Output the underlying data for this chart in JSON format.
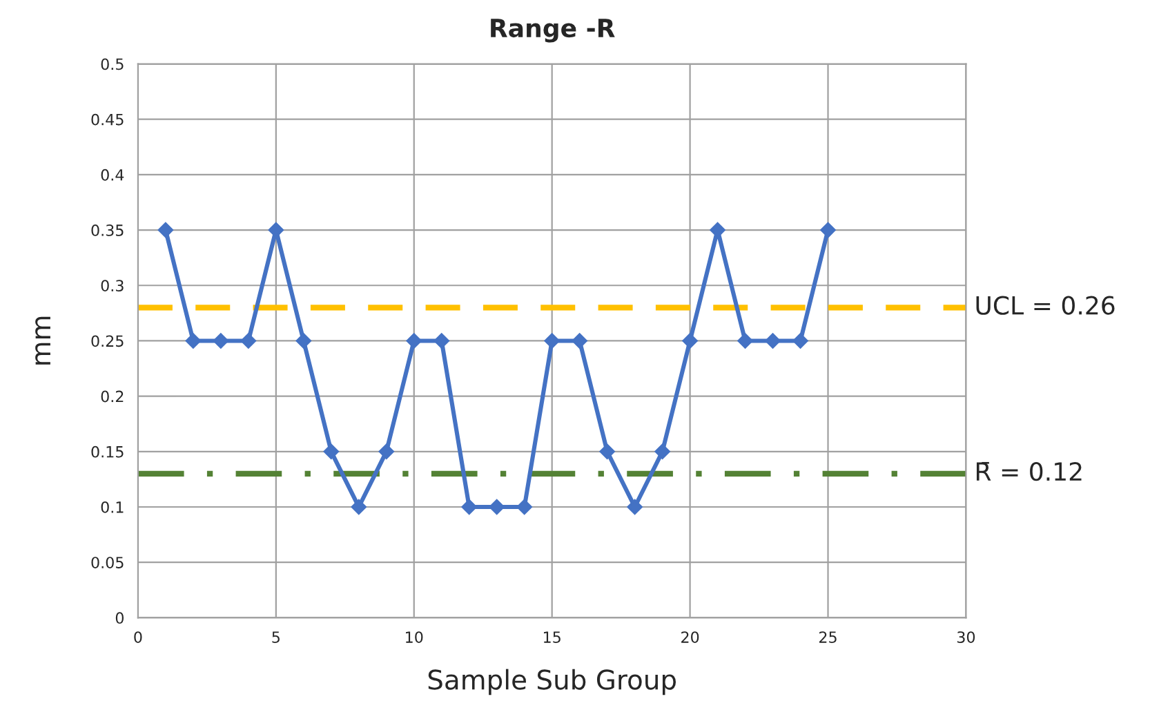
{
  "chart_data": {
    "type": "line",
    "title": "Range -R",
    "xlabel": "Sample Sub Group",
    "ylabel": "mm",
    "x": [
      1,
      2,
      3,
      4,
      5,
      6,
      7,
      8,
      9,
      10,
      11,
      12,
      13,
      14,
      15,
      16,
      17,
      18,
      19,
      20,
      21,
      22,
      23,
      24,
      25
    ],
    "series": [
      {
        "color": "#4472c4",
        "values": [
          0.35,
          0.25,
          0.25,
          0.25,
          0.35,
          0.25,
          0.15,
          0.1,
          0.15,
          0.25,
          0.25,
          0.1,
          0.1,
          0.1,
          0.25,
          0.25,
          0.15,
          0.1,
          0.15,
          0.25,
          0.35,
          0.25,
          0.25,
          0.25,
          0.35
        ]
      }
    ],
    "ref_lines": [
      {
        "axis": "y",
        "value": 0.28,
        "color": "#ffc000",
        "line_style": "dashed"
      },
      {
        "axis": "y",
        "value": 0.13,
        "color": "#548235",
        "line_style": "dashdot"
      }
    ],
    "annotations": [
      "UCL = 0.26",
      "R̄ = 0.12"
    ],
    "xlim": [
      0,
      30
    ],
    "xticks": [
      0,
      5,
      10,
      15,
      20,
      25,
      30
    ],
    "ylim": [
      0,
      0.5
    ],
    "yticks": [
      0,
      0.05,
      0.1,
      0.15,
      0.2,
      0.25,
      0.3,
      0.35,
      0.4,
      0.45,
      0.5
    ],
    "grid": true,
    "marker": "diamond",
    "line_style": "solid",
    "legend": false
  }
}
